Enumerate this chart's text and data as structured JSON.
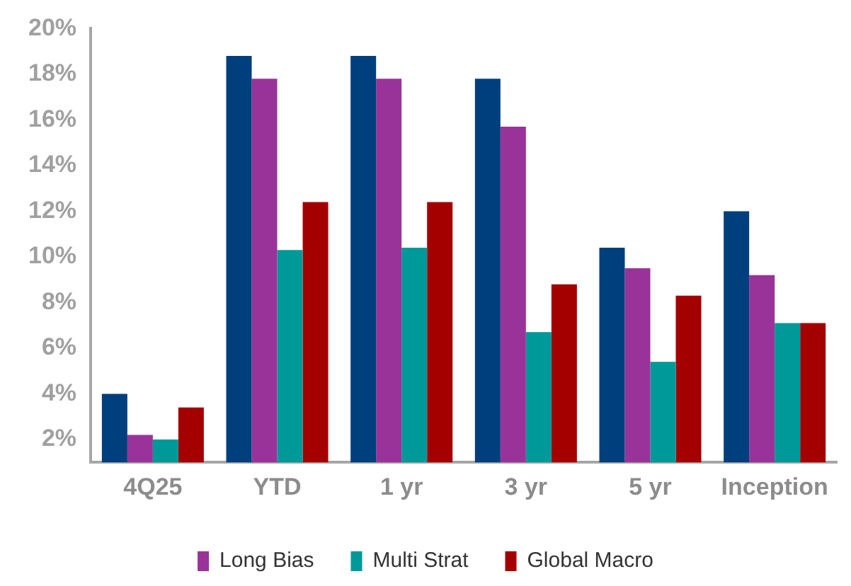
{
  "chart_data": {
    "type": "bar",
    "categories": [
      "4Q25",
      "YTD",
      "1 yr",
      "3 yr",
      "5 yr",
      "Inception"
    ],
    "series": [
      {
        "color": "#003f7d",
        "values": [
          4.0,
          18.8,
          18.8,
          17.8,
          10.4,
          12.0
        ]
      },
      {
        "name": "Long Bias",
        "color": "#993399",
        "values": [
          2.2,
          17.8,
          17.8,
          15.7,
          9.5,
          9.2
        ]
      },
      {
        "name": "Multi Strat",
        "color": "#009999",
        "values": [
          2.0,
          10.3,
          10.4,
          6.7,
          5.4,
          7.1
        ]
      },
      {
        "name": "Global Macro",
        "color": "#a50000",
        "values": [
          3.4,
          12.4,
          12.4,
          8.8,
          8.3,
          7.1
        ]
      }
    ],
    "ylim": [
      1,
      20
    ],
    "yticks": [
      {
        "value": 2,
        "label": "2%"
      },
      {
        "value": 4,
        "label": "4%"
      },
      {
        "value": 6,
        "label": "6%"
      },
      {
        "value": 8,
        "label": "8%"
      },
      {
        "value": 10,
        "label": "10%"
      },
      {
        "value": 12,
        "label": "12%"
      },
      {
        "value": 14,
        "label": "14%"
      },
      {
        "value": 16,
        "label": "16%"
      },
      {
        "value": 18,
        "label": "18%"
      },
      {
        "value": 20,
        "label": "20%"
      }
    ],
    "grid": false,
    "legend": "bottom"
  }
}
